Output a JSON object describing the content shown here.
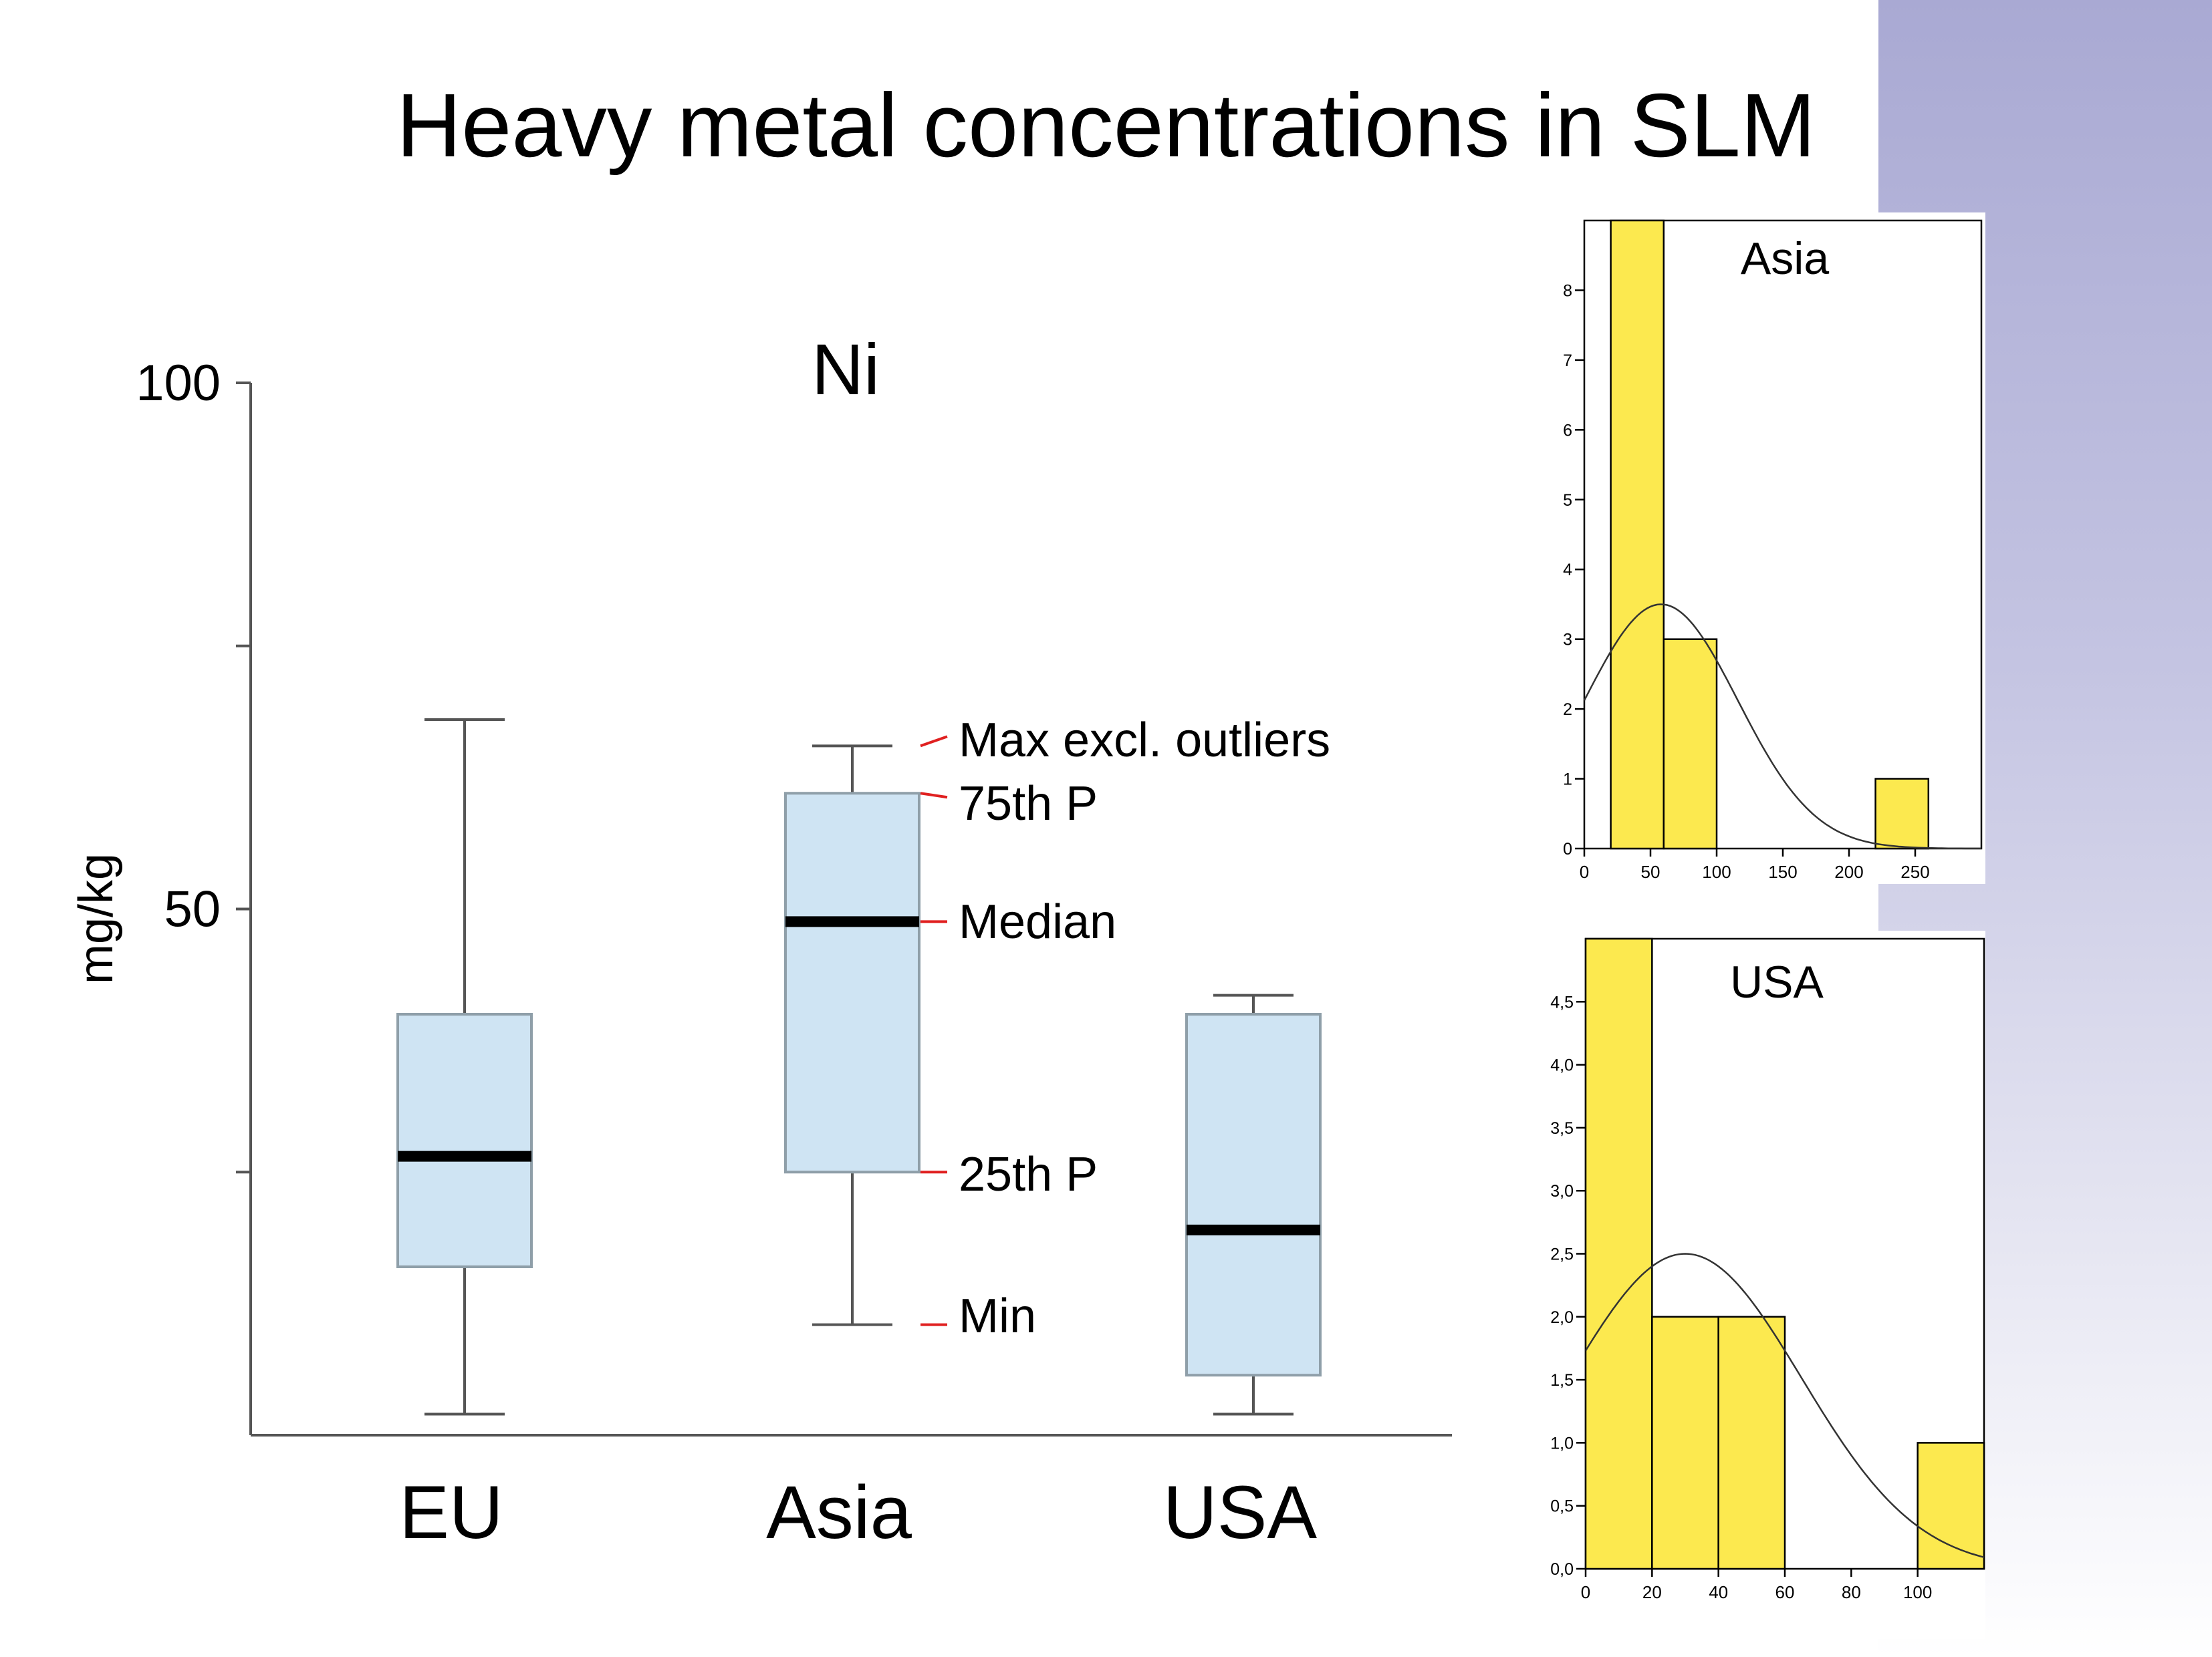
{
  "slide": {
    "title": "Heavy metal concentrations in SLM"
  },
  "colors": {
    "box_fill": "#cfe4f3",
    "box_stroke": "#8f9fa9",
    "median": "#000000",
    "annotation_tick": "#e02020",
    "hist_fill": "#fce94f",
    "decor_band_top": "#a9a9d3"
  },
  "chart_data": [
    {
      "type": "box",
      "title": "Ni",
      "ylabel": "mg/kg",
      "ylim": [
        0,
        100
      ],
      "yticks": [
        100,
        75,
        50,
        25
      ],
      "ytick_labels": [
        "100",
        "",
        "50",
        ""
      ],
      "grid": false,
      "categories": [
        "EU",
        "Asia",
        "USA"
      ],
      "boxes": [
        {
          "name": "EU",
          "min": 2,
          "q1": 16,
          "median": 26.5,
          "q3": 40,
          "max": 68
        },
        {
          "name": "Asia",
          "min": 10.5,
          "q1": 25,
          "median": 48.8,
          "q3": 61,
          "max": 65.5
        },
        {
          "name": "USA",
          "min": 2,
          "q1": 5.7,
          "median": 19.5,
          "q3": 40,
          "max": 41.8
        }
      ],
      "annotations": [
        "Max excl. outliers",
        "75th P",
        "Median",
        "25th P",
        "Min"
      ]
    },
    {
      "type": "histogram",
      "title": "Asia",
      "xlim": [
        0,
        300
      ],
      "ylim": [
        0,
        9
      ],
      "xticks": [
        0,
        50,
        100,
        150,
        200,
        250
      ],
      "yticks": [
        0,
        1,
        2,
        3,
        4,
        5,
        6,
        7,
        8
      ],
      "bins": [
        {
          "x0": 20,
          "x1": 60,
          "count": 9
        },
        {
          "x0": 60,
          "x1": 100,
          "count": 3
        },
        {
          "x0": 220,
          "x1": 260,
          "count": 1
        }
      ],
      "normal_curve": {
        "mean": 58,
        "sd": 58,
        "peak": 3.5
      }
    },
    {
      "type": "histogram",
      "title": "USA",
      "xlim": [
        0,
        120
      ],
      "ylim": [
        0,
        5
      ],
      "xticks": [
        0,
        20,
        40,
        60,
        80,
        100
      ],
      "yticks": [
        "0,0",
        "0,5",
        "1,0",
        "1,5",
        "2,0",
        "2,5",
        "3,0",
        "3,5",
        "4,0",
        "4,5"
      ],
      "bins": [
        {
          "x0": 0,
          "x1": 20,
          "count": 5
        },
        {
          "x0": 20,
          "x1": 40,
          "count": 2
        },
        {
          "x0": 40,
          "x1": 60,
          "count": 2
        },
        {
          "x0": 100,
          "x1": 120,
          "count": 1
        }
      ],
      "normal_curve": {
        "mean": 30,
        "sd": 35,
        "peak": 2.5
      }
    }
  ]
}
